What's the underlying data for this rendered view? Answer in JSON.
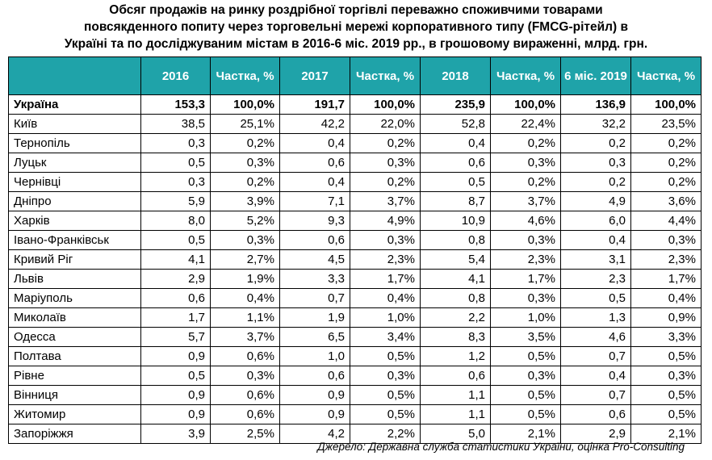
{
  "title_lines": [
    "Обсяг продажів на ринку роздрібної торгівлі переважно споживчими товарами",
    "повсякденного попиту через торговельні мережі корпоративного типу (FMCG-рітейл) в",
    "Україні та по досліджуваним містам в 2016-6 міс. 2019 рр., в грошовому вираженні, млрд. грн."
  ],
  "headers": [
    "",
    "2016",
    "Частка, %",
    "2017",
    "Частка, %",
    "2018",
    "Частка, %",
    "6 міс. 2019",
    "Частка, %"
  ],
  "rows": [
    {
      "city": "Україна",
      "v2016": "153,3",
      "s2016": "100,0%",
      "v2017": "191,7",
      "s2017": "100,0%",
      "v2018": "235,9",
      "s2018": "100,0%",
      "v2019": "136,9",
      "s2019": "100,0%"
    },
    {
      "city": "Київ",
      "v2016": "38,5",
      "s2016": "25,1%",
      "v2017": "42,2",
      "s2017": "22,0%",
      "v2018": "52,8",
      "s2018": "22,4%",
      "v2019": "32,2",
      "s2019": "23,5%"
    },
    {
      "city": "Тернопіль",
      "v2016": "0,3",
      "s2016": "0,2%",
      "v2017": "0,4",
      "s2017": "0,2%",
      "v2018": "0,4",
      "s2018": "0,2%",
      "v2019": "0,2",
      "s2019": "0,2%"
    },
    {
      "city": "Луцьк",
      "v2016": "0,5",
      "s2016": "0,3%",
      "v2017": "0,6",
      "s2017": "0,3%",
      "v2018": "0,6",
      "s2018": "0,3%",
      "v2019": "0,3",
      "s2019": "0,2%"
    },
    {
      "city": "Чернівці",
      "v2016": "0,3",
      "s2016": "0,2%",
      "v2017": "0,4",
      "s2017": "0,2%",
      "v2018": "0,5",
      "s2018": "0,2%",
      "v2019": "0,2",
      "s2019": "0,2%"
    },
    {
      "city": "Дніпро",
      "v2016": "5,9",
      "s2016": "3,9%",
      "v2017": "7,1",
      "s2017": "3,7%",
      "v2018": "8,7",
      "s2018": "3,7%",
      "v2019": "4,9",
      "s2019": "3,6%"
    },
    {
      "city": "Харків",
      "v2016": "8,0",
      "s2016": "5,2%",
      "v2017": "9,3",
      "s2017": "4,9%",
      "v2018": "10,9",
      "s2018": "4,6%",
      "v2019": "6,0",
      "s2019": "4,4%"
    },
    {
      "city": "Івано-Франківськ",
      "v2016": "0,5",
      "s2016": "0,3%",
      "v2017": "0,6",
      "s2017": "0,3%",
      "v2018": "0,8",
      "s2018": "0,3%",
      "v2019": "0,4",
      "s2019": "0,3%"
    },
    {
      "city": "Кривий Ріг",
      "v2016": "4,1",
      "s2016": "2,7%",
      "v2017": "4,5",
      "s2017": "2,3%",
      "v2018": "5,4",
      "s2018": "2,3%",
      "v2019": "3,1",
      "s2019": "2,3%"
    },
    {
      "city": "Львів",
      "v2016": "2,9",
      "s2016": "1,9%",
      "v2017": "3,3",
      "s2017": "1,7%",
      "v2018": "4,1",
      "s2018": "1,7%",
      "v2019": "2,3",
      "s2019": "1,7%"
    },
    {
      "city": "Маріуполь",
      "v2016": "0,6",
      "s2016": "0,4%",
      "v2017": "0,7",
      "s2017": "0,4%",
      "v2018": "0,8",
      "s2018": "0,3%",
      "v2019": "0,5",
      "s2019": "0,4%"
    },
    {
      "city": "Миколаїв",
      "v2016": "1,7",
      "s2016": "1,1%",
      "v2017": "1,9",
      "s2017": "1,0%",
      "v2018": "2,2",
      "s2018": "1,0%",
      "v2019": "1,3",
      "s2019": "0,9%"
    },
    {
      "city": "Одесса",
      "v2016": "5,7",
      "s2016": "3,7%",
      "v2017": "6,5",
      "s2017": "3,4%",
      "v2018": "8,3",
      "s2018": "3,5%",
      "v2019": "4,6",
      "s2019": "3,3%"
    },
    {
      "city": "Полтава",
      "v2016": "0,9",
      "s2016": "0,6%",
      "v2017": "1,0",
      "s2017": "0,5%",
      "v2018": "1,2",
      "s2018": "0,5%",
      "v2019": "0,7",
      "s2019": "0,5%"
    },
    {
      "city": "Рівне",
      "v2016": "0,5",
      "s2016": "0,3%",
      "v2017": "0,6",
      "s2017": "0,3%",
      "v2018": "0,6",
      "s2018": "0,3%",
      "v2019": "0,4",
      "s2019": "0,3%"
    },
    {
      "city": "Вінниця",
      "v2016": "0,9",
      "s2016": "0,6%",
      "v2017": "0,9",
      "s2017": "0,5%",
      "v2018": "1,1",
      "s2018": "0,5%",
      "v2019": "0,7",
      "s2019": "0,5%"
    },
    {
      "city": "Житомир",
      "v2016": "0,9",
      "s2016": "0,6%",
      "v2017": "0,9",
      "s2017": "0,5%",
      "v2018": "1,1",
      "s2018": "0,5%",
      "v2019": "0,6",
      "s2019": "0,5%"
    },
    {
      "city": "Запоріжжя",
      "v2016": "3,9",
      "s2016": "2,5%",
      "v2017": "4,2",
      "s2017": "2,2%",
      "v2018": "5,0",
      "s2018": "2,1%",
      "v2019": "2,9",
      "s2019": "2,1%"
    }
  ],
  "source": "Джерело: Державна служба статистики України, оцінка Pro-Consulting",
  "colors": {
    "header_bg": "#1fa3a9",
    "header_text": "#ffffff",
    "border": "#000000"
  }
}
